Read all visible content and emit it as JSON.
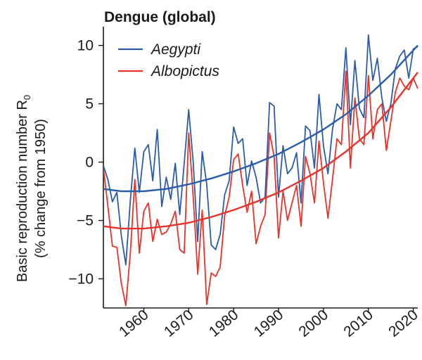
{
  "chart_data": {
    "type": "line",
    "title": "Dengue (global)",
    "ylabel": "Basic reproduction number R",
    "ylabel_sub": "0",
    "ylabel_line2": "(% change from 1950)",
    "xlim": [
      1951,
      2021
    ],
    "ylim": [
      -12.5,
      11
    ],
    "x_ticks": [
      1960,
      1970,
      1980,
      1990,
      2000,
      2010,
      2020
    ],
    "y_ticks": [
      10,
      5,
      0,
      -5,
      -10
    ],
    "x_tick_labels": [
      "1960",
      "1970",
      "1980",
      "1990",
      "2000",
      "2010",
      "2020"
    ],
    "y_tick_labels": [
      "10",
      "5",
      "0",
      "−5",
      "−10"
    ],
    "legend_position": "top-left",
    "series": [
      {
        "name": "Aegypti",
        "color": "#2a5caa",
        "x": [
          1951,
          1952,
          1953,
          1954,
          1955,
          1956,
          1957,
          1958,
          1959,
          1960,
          1961,
          1962,
          1963,
          1964,
          1965,
          1966,
          1967,
          1968,
          1969,
          1970,
          1971,
          1972,
          1973,
          1974,
          1975,
          1976,
          1977,
          1978,
          1979,
          1980,
          1981,
          1982,
          1983,
          1984,
          1985,
          1986,
          1987,
          1988,
          1989,
          1990,
          1991,
          1992,
          1993,
          1994,
          1995,
          1996,
          1997,
          1998,
          1999,
          2000,
          2001,
          2002,
          2003,
          2004,
          2005,
          2006,
          2007,
          2008,
          2009,
          2010,
          2011,
          2012,
          2013,
          2014,
          2015,
          2016,
          2017,
          2018,
          2019,
          2020,
          2021
        ],
        "y": [
          -0.3,
          -1.5,
          -3.4,
          -2.6,
          -6.3,
          -8.8,
          -3.3,
          1.2,
          -2.6,
          0.9,
          1.5,
          -1.6,
          2.8,
          -3.8,
          -1.3,
          -3.2,
          -0.1,
          -4.5,
          -0.1,
          4.5,
          0.0,
          -6.8,
          0.9,
          -1.9,
          -7.1,
          -7.5,
          -6.2,
          -2.8,
          -1.6,
          3.0,
          1.6,
          2.0,
          -2.0,
          0.1,
          -1.3,
          -3.5,
          -3.0,
          5.1,
          4.8,
          -3.0,
          1.4,
          -1.0,
          -0.5,
          0.8,
          -3.5,
          3.1,
          2.7,
          -0.5,
          5.8,
          1.4,
          -1.0,
          2.8,
          5.0,
          4.5,
          9.8,
          3.2,
          8.7,
          4.6,
          3.8,
          10.9,
          7.0,
          8.9,
          5.5,
          3.5,
          5.0,
          8.0,
          9.1,
          9.6,
          7.2,
          9.7,
          9.9
        ]
      },
      {
        "name": "Albopictus",
        "color": "#e8322a",
        "x": [
          1951,
          1952,
          1953,
          1954,
          1955,
          1956,
          1957,
          1958,
          1959,
          1960,
          1961,
          1962,
          1963,
          1964,
          1965,
          1966,
          1967,
          1968,
          1969,
          1970,
          1971,
          1972,
          1973,
          1974,
          1975,
          1976,
          1977,
          1978,
          1979,
          1980,
          1981,
          1982,
          1983,
          1984,
          1985,
          1986,
          1987,
          1988,
          1989,
          1990,
          1991,
          1992,
          1993,
          1994,
          1995,
          1996,
          1997,
          1998,
          1999,
          2000,
          2001,
          2002,
          2003,
          2004,
          2005,
          2006,
          2007,
          2008,
          2009,
          2010,
          2011,
          2012,
          2013,
          2014,
          2015,
          2016,
          2017,
          2018,
          2019,
          2020,
          2021
        ],
        "y": [
          -0.5,
          -3.8,
          -7.2,
          -7.3,
          -10.4,
          -12.3,
          -7.8,
          -1.5,
          -7.8,
          -4.2,
          -3.5,
          -6.8,
          -4.9,
          -6.2,
          -6.0,
          -5.3,
          -4.2,
          -7.5,
          -7.8,
          2.5,
          -3.0,
          -9.6,
          -4.1,
          -12.2,
          -9.5,
          -9.8,
          -9.0,
          -4.6,
          -3.0,
          0.2,
          0.7,
          -2.0,
          -4.3,
          -2.5,
          -7.0,
          -5.5,
          -4.5,
          2.5,
          0.5,
          -6.5,
          -2.5,
          -5.0,
          -3.5,
          -2.0,
          -5.5,
          0.5,
          -1.0,
          -3.5,
          1.8,
          -1.8,
          -4.8,
          -1.5,
          2.0,
          1.5,
          7.8,
          -0.5,
          5.5,
          2.0,
          1.5,
          7.4,
          2.0,
          4.5,
          5.0,
          1.0,
          3.5,
          6.0,
          7.2,
          6.5,
          6.2,
          7.2,
          6.3
        ]
      },
      {
        "name": "",
        "color": "#2a5caa",
        "trend": true,
        "x": [
          1951,
          1955,
          1960,
          1965,
          1970,
          1975,
          1980,
          1985,
          1990,
          1995,
          2000,
          2005,
          2010,
          2015,
          2021
        ],
        "y": [
          -2.3,
          -2.5,
          -2.5,
          -2.3,
          -1.9,
          -1.4,
          -0.8,
          -0.1,
          0.7,
          1.7,
          2.8,
          4.1,
          5.7,
          7.5,
          10.0
        ]
      },
      {
        "name": "",
        "color": "#e8322a",
        "trend": true,
        "x": [
          1951,
          1955,
          1960,
          1965,
          1970,
          1975,
          1980,
          1985,
          1990,
          1995,
          2000,
          2005,
          2010,
          2015,
          2021
        ],
        "y": [
          -5.5,
          -5.7,
          -5.7,
          -5.5,
          -5.2,
          -4.7,
          -4.1,
          -3.4,
          -2.6,
          -1.6,
          -0.5,
          0.9,
          2.5,
          4.7,
          7.7
        ]
      }
    ]
  }
}
